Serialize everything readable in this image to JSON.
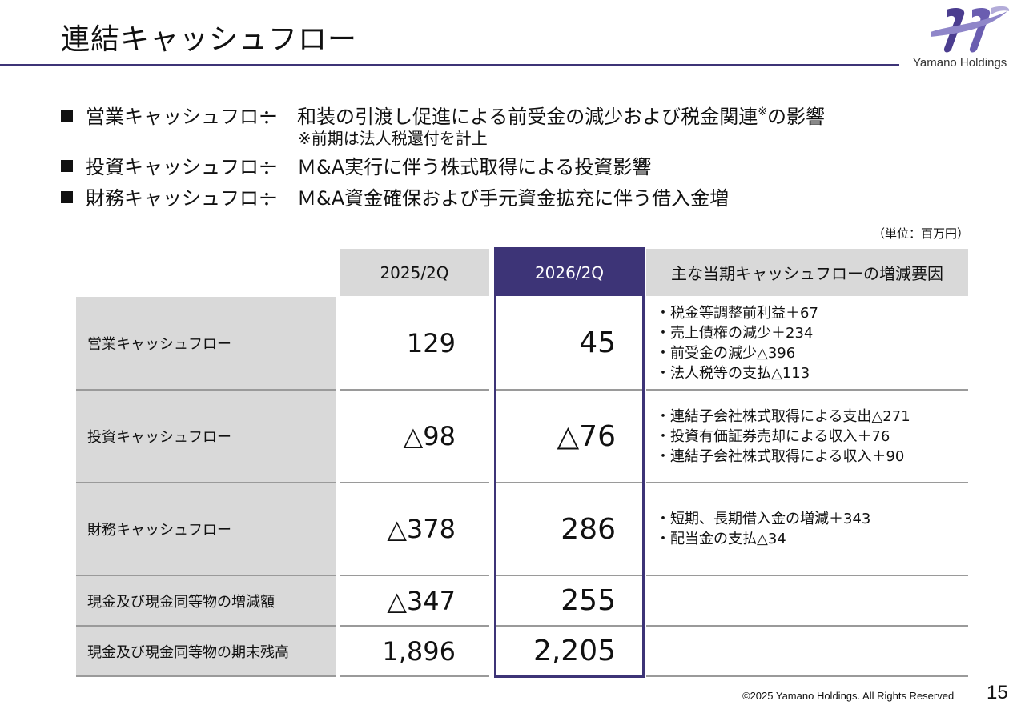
{
  "header": {
    "title": "連結キャッシュフロー",
    "logo_text": "Yamano Holdings"
  },
  "bullets": [
    {
      "label": "営業キャッシュフロー",
      "colon": "：",
      "desc": "和装の引渡し促進による前受金の減少および税金関連",
      "mark": "※",
      "suffix": "の影響"
    },
    {
      "label": "投資キャッシュフロー",
      "colon": "：",
      "desc": "Ｍ&A実行に伴う株式取得による投資影響"
    },
    {
      "label": "財務キャッシュフロー",
      "colon": "：",
      "desc": "Ｍ&A資金確保および手元資金拡充に伴う借入金増"
    }
  ],
  "note": "※前期は法人税還付を計上",
  "unit": "（単位：百万円）",
  "table": {
    "headers": {
      "col1": "2025/2Q",
      "col2": "2026/2Q",
      "col3": "主な当期キャッシュフローの増減要因"
    },
    "rows": [
      {
        "label": "営業キャッシュフロー",
        "v2025": "129",
        "v2026": "45",
        "factors": [
          "・税金等調整前利益＋67",
          "・売上債権の減少＋234",
          "・前受金の減少△396",
          "・法人税等の支払△113"
        ]
      },
      {
        "label": "投資キャッシュフロー",
        "v2025": "△98",
        "v2026": "△76",
        "factors": [
          "・連結子会社株式取得による支出△271",
          "・投資有価証券売却による収入＋76",
          "・連結子会社株式取得による収入＋90"
        ]
      },
      {
        "label": "財務キャッシュフロー",
        "v2025": "△378",
        "v2026": "286",
        "factors": [
          "・短期、長期借入金の増減＋343",
          "・配当金の支払△34"
        ]
      },
      {
        "label": "現金及び現金同等物の増減額",
        "v2025": "△347",
        "v2026": "255",
        "factors": []
      },
      {
        "label": "現金及び現金同等物の期末残高",
        "v2025": "1,896",
        "v2026": "2,205",
        "factors": []
      }
    ]
  },
  "footer": {
    "copyright": "©2025 Yamano Holdings. All Rights Reserved",
    "page": "15"
  },
  "colors": {
    "accent": "#3d3477",
    "header_gray": "#d9d9d9"
  }
}
